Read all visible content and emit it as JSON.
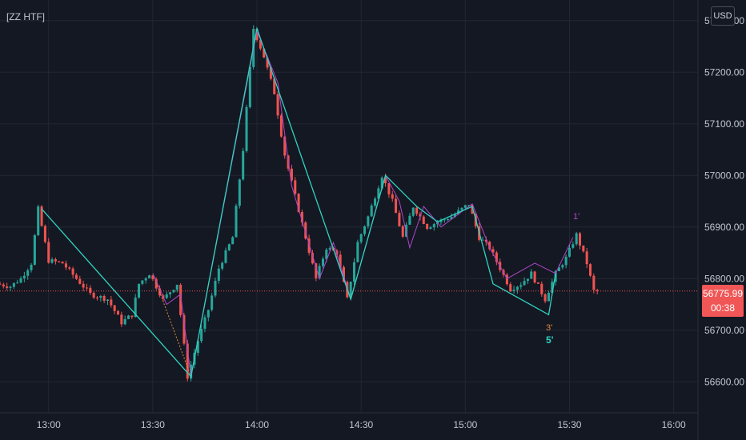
{
  "indicator_label": "[ZZ HTF]",
  "currency_button": "USD",
  "last_price": "56775.99",
  "countdown": "00:38",
  "colors": {
    "background": "#141823",
    "up": "#26a69a",
    "down": "#ef5350",
    "zigzag_main": "#2fd4c0",
    "zigzag_minor": "#b046c9",
    "zigzag_dotted": "#e08a3c",
    "price_line": "#ef5350"
  },
  "wave_labels": {
    "one": "1'",
    "three": "3'",
    "five": "5'"
  },
  "chart_data": {
    "type": "candlestick",
    "title": "",
    "xlabel": "",
    "ylabel": "",
    "x_ticks": [
      "13:00",
      "13:30",
      "14:00",
      "14:30",
      "15:00",
      "15:30",
      "16:00"
    ],
    "y_ticks": [
      "56600.00",
      "56700.00",
      "56800.00",
      "56900.00",
      "57000.00",
      "57100.00",
      "57200.00",
      "57300.00"
    ],
    "y_range": [
      56540,
      57340
    ],
    "x_range": [
      "12:46",
      "16:07"
    ],
    "candle_interval_minutes": 1,
    "grid": true,
    "last_price": 56775.99,
    "zigzag_main": [
      {
        "t": "12:58",
        "price": 56935
      },
      {
        "t": "13:41",
        "price": 56610
      },
      {
        "t": "14:00",
        "price": 57285
      },
      {
        "t": "14:27",
        "price": 56760
      },
      {
        "t": "14:37",
        "price": 57000
      },
      {
        "t": "14:46",
        "price": 56940
      },
      {
        "t": "14:52",
        "price": 56910
      },
      {
        "t": "15:02",
        "price": 56940
      },
      {
        "t": "15:08",
        "price": 56790
      },
      {
        "t": "15:24",
        "price": 56730
      },
      {
        "t": "15:26",
        "price": 56810
      }
    ],
    "zigzag_minor": [
      {
        "t": "13:30",
        "price": 56810
      },
      {
        "t": "13:34",
        "price": 56750
      },
      {
        "t": "13:38",
        "price": 56770
      },
      {
        "t": "13:41",
        "price": 56610
      },
      {
        "t": "14:00",
        "price": 57280
      },
      {
        "t": "14:06",
        "price": 57180
      },
      {
        "t": "14:10",
        "price": 56980
      },
      {
        "t": "14:18",
        "price": 56800
      },
      {
        "t": "14:22",
        "price": 56870
      },
      {
        "t": "14:27",
        "price": 56760
      },
      {
        "t": "14:37",
        "price": 57000
      },
      {
        "t": "14:41",
        "price": 56950
      },
      {
        "t": "14:44",
        "price": 56860
      },
      {
        "t": "14:48",
        "price": 56940
      },
      {
        "t": "14:53",
        "price": 56900
      },
      {
        "t": "14:57",
        "price": 56920
      },
      {
        "t": "15:02",
        "price": 56945
      },
      {
        "t": "15:07",
        "price": 56860
      },
      {
        "t": "15:12",
        "price": 56800
      },
      {
        "t": "15:20",
        "price": 56830
      },
      {
        "t": "15:26",
        "price": 56810
      },
      {
        "t": "15:31",
        "price": 56880
      }
    ],
    "zigzag_dotted": [
      {
        "t": "13:30",
        "price": 56810
      },
      {
        "t": "13:41",
        "price": 56610
      }
    ]
  }
}
